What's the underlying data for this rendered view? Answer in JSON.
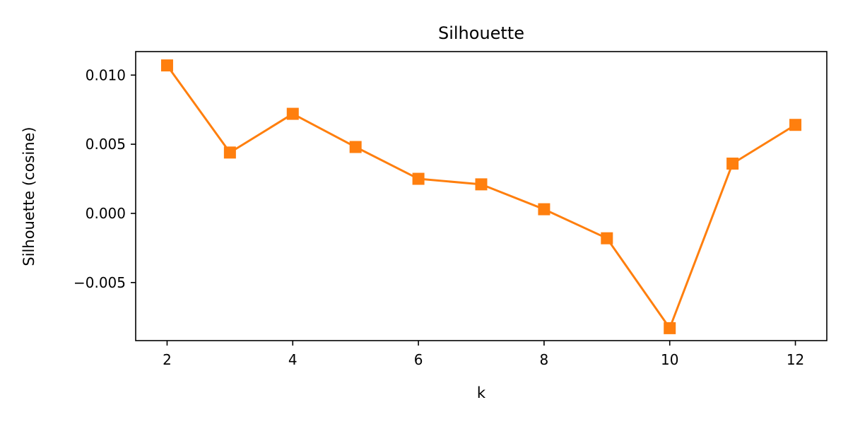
{
  "chart_data": {
    "type": "line",
    "title": "Silhouette",
    "xlabel": "k",
    "ylabel": "Silhouette (cosine)",
    "xlim": [
      1.5,
      12.5
    ],
    "ylim": [
      -0.0092,
      0.0117
    ],
    "x_ticks": [
      2,
      4,
      6,
      8,
      10,
      12
    ],
    "x_tick_labels": [
      "2",
      "4",
      "6",
      "8",
      "10",
      "12"
    ],
    "y_ticks": [
      0.01,
      0.005,
      0.0,
      -0.005
    ],
    "y_tick_labels": [
      "0.010",
      "0.005",
      "0.000",
      "−0.005"
    ],
    "grid": false,
    "marker": "square",
    "series": [
      {
        "color": "#ff7f0e",
        "x": [
          2,
          3,
          4,
          5,
          6,
          7,
          8,
          9,
          10,
          11,
          12
        ],
        "values": [
          0.0107,
          0.0044,
          0.0072,
          0.0048,
          0.0025,
          0.0021,
          0.0003,
          -0.0018,
          -0.0083,
          0.0036,
          0.0064
        ]
      }
    ]
  }
}
